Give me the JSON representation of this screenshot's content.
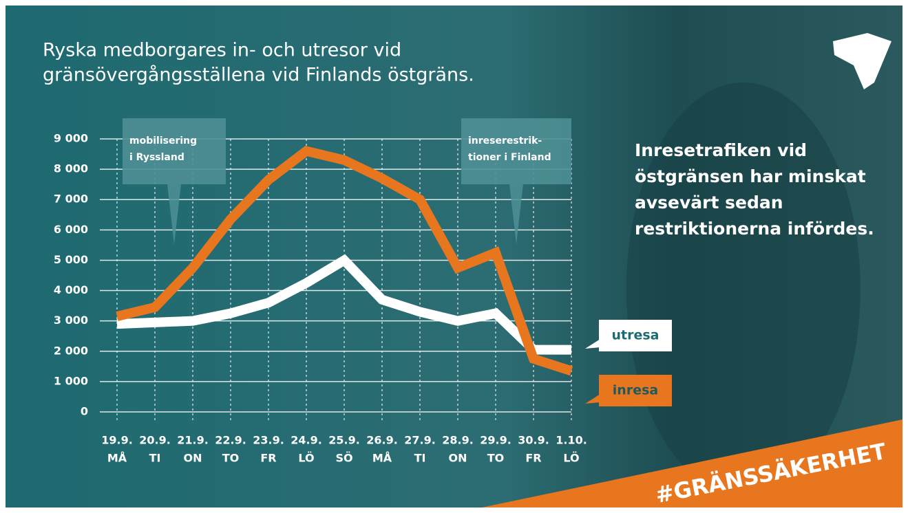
{
  "chart_data": {
    "type": "line",
    "title": [
      "Ryska medborgares in- och utresor vid",
      "gränsövergångsställena vid Finlands östgräns."
    ],
    "categories": [
      "19.9.",
      "20.9.",
      "21.9.",
      "22.9.",
      "23.9.",
      "24.9.",
      "25.9.",
      "26.9.",
      "27.9.",
      "28.9.",
      "29.9.",
      "30.9.",
      "1.10."
    ],
    "weekdays": [
      "MÅ",
      "TI",
      "ON",
      "TO",
      "FR",
      "LÖ",
      "SÖ",
      "MÅ",
      "TI",
      "ON",
      "TO",
      "FR",
      "LÖ"
    ],
    "series": [
      {
        "name": "utresa",
        "color": "#ffffff",
        "values": [
          2900,
          2950,
          3000,
          3250,
          3600,
          4250,
          5000,
          3700,
          3300,
          3000,
          3250,
          2050,
          2050
        ]
      },
      {
        "name": "inresa",
        "color": "#e8761e",
        "values": [
          3150,
          3450,
          4750,
          6350,
          7650,
          8600,
          8300,
          7700,
          7000,
          4750,
          5250,
          1750,
          1350
        ]
      }
    ],
    "ylim": [
      0,
      9000
    ],
    "yticks": [
      0,
      {
        "value": 1000,
        "label": "1 000"
      },
      {
        "value": 2000,
        "label": "2 000"
      },
      {
        "value": 3000,
        "label": "3 000"
      },
      {
        "value": 4000,
        "label": "4 000"
      },
      {
        "value": 5000,
        "label": "5 000"
      },
      {
        "value": 6000,
        "label": "6 000"
      },
      {
        "value": 7000,
        "label": "7 000"
      },
      {
        "value": 8000,
        "label": "8 000"
      },
      {
        "value": 9000,
        "label": "9 000"
      }
    ],
    "grid": true,
    "annotations": [
      [
        "mobilisering",
        "i Ryssland"
      ],
      [
        "inreserestrik-",
        "tioner i Finland"
      ]
    ],
    "note": [
      "Inresetrafiken vid",
      "östgränsen har minskat",
      "avsevärt sedan",
      "restriktionerna infördes."
    ],
    "hashtag": "#GRÄNSSÄKERHET"
  }
}
